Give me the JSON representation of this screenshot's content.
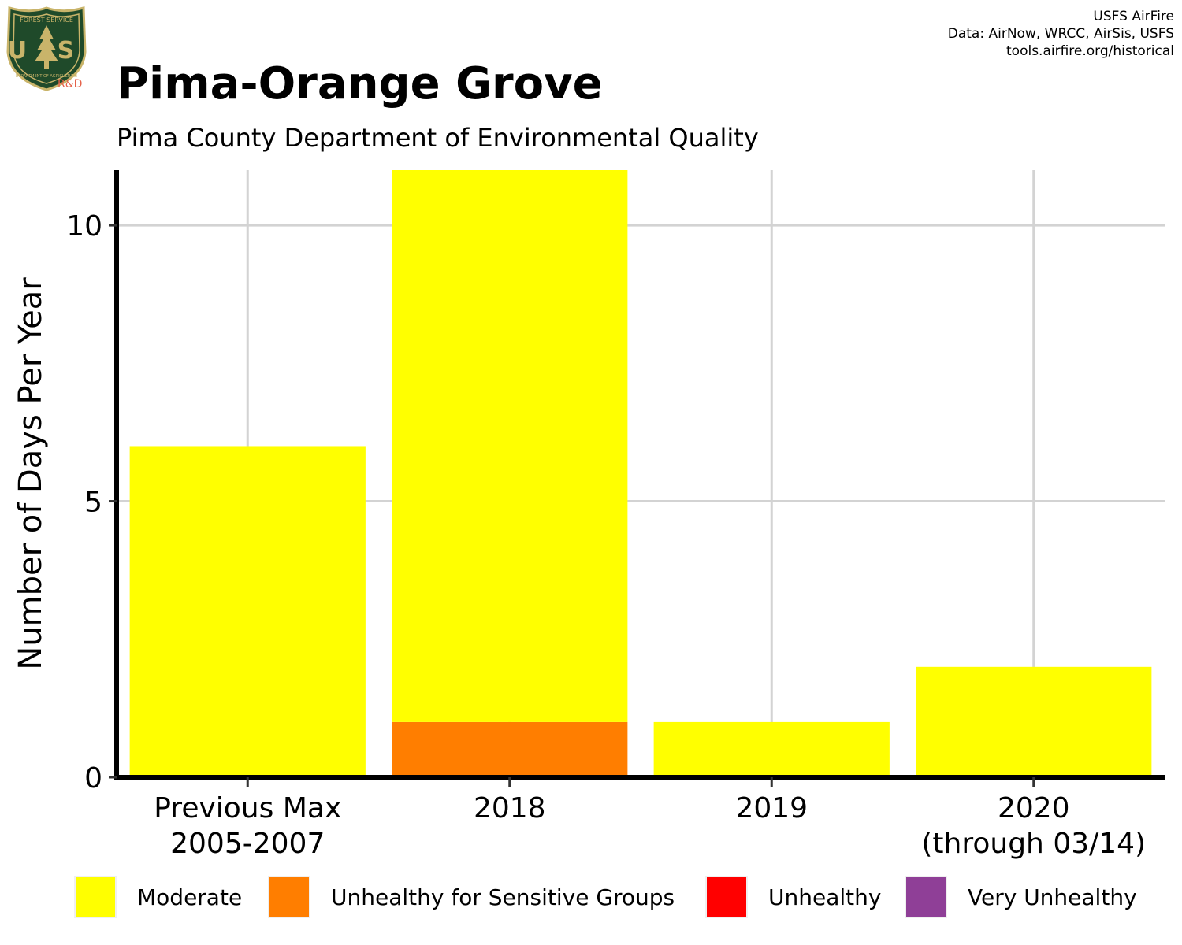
{
  "logo": {
    "top_text": "FOREST SERVICE",
    "letters": "U S",
    "bottom_text": "DEPARTMENT OF AGRICULTURE",
    "tag": "R&D"
  },
  "credits": [
    "USFS AirFire",
    "Data: AirNow, WRCC, AirSis, USFS",
    "tools.airfire.org/historical"
  ],
  "colors": {
    "moderate": "#ffff00",
    "usg": "#ff7e00",
    "unhealthy": "#ff0000",
    "very_unhealthy": "#8f3f97",
    "grid": "#d3d3d3",
    "axis": "#000000"
  },
  "chart_data": {
    "type": "bar",
    "stacked": true,
    "title": "Pima-Orange Grove",
    "subtitle": "Pima County Department of Environmental Quality",
    "xlabel": "",
    "ylabel": "Number of Days Per Year",
    "categories": [
      [
        "Previous Max",
        "2005-2007"
      ],
      [
        "2018"
      ],
      [
        "2019"
      ],
      [
        "2020",
        "(through 03/14)"
      ]
    ],
    "series": [
      {
        "name": "Unhealthy for Sensitive Groups",
        "color": "#ff7e00",
        "values": [
          0,
          1,
          0,
          0
        ]
      },
      {
        "name": "Moderate",
        "color": "#ffff00",
        "values": [
          6,
          10,
          1,
          2
        ]
      },
      {
        "name": "Unhealthy",
        "color": "#ff0000",
        "values": [
          0,
          0,
          0,
          0
        ]
      },
      {
        "name": "Very Unhealthy",
        "color": "#8f3f97",
        "values": [
          0,
          0,
          0,
          0
        ]
      }
    ],
    "yticks": [
      0,
      5,
      10
    ],
    "ylim": [
      0,
      11
    ],
    "grid": true,
    "legend_position": "bottom",
    "legend": [
      {
        "name": "Moderate",
        "color": "#ffff00"
      },
      {
        "name": "Unhealthy for Sensitive Groups",
        "color": "#ff7e00"
      },
      {
        "name": "Unhealthy",
        "color": "#ff0000"
      },
      {
        "name": "Very Unhealthy",
        "color": "#8f3f97"
      }
    ]
  }
}
